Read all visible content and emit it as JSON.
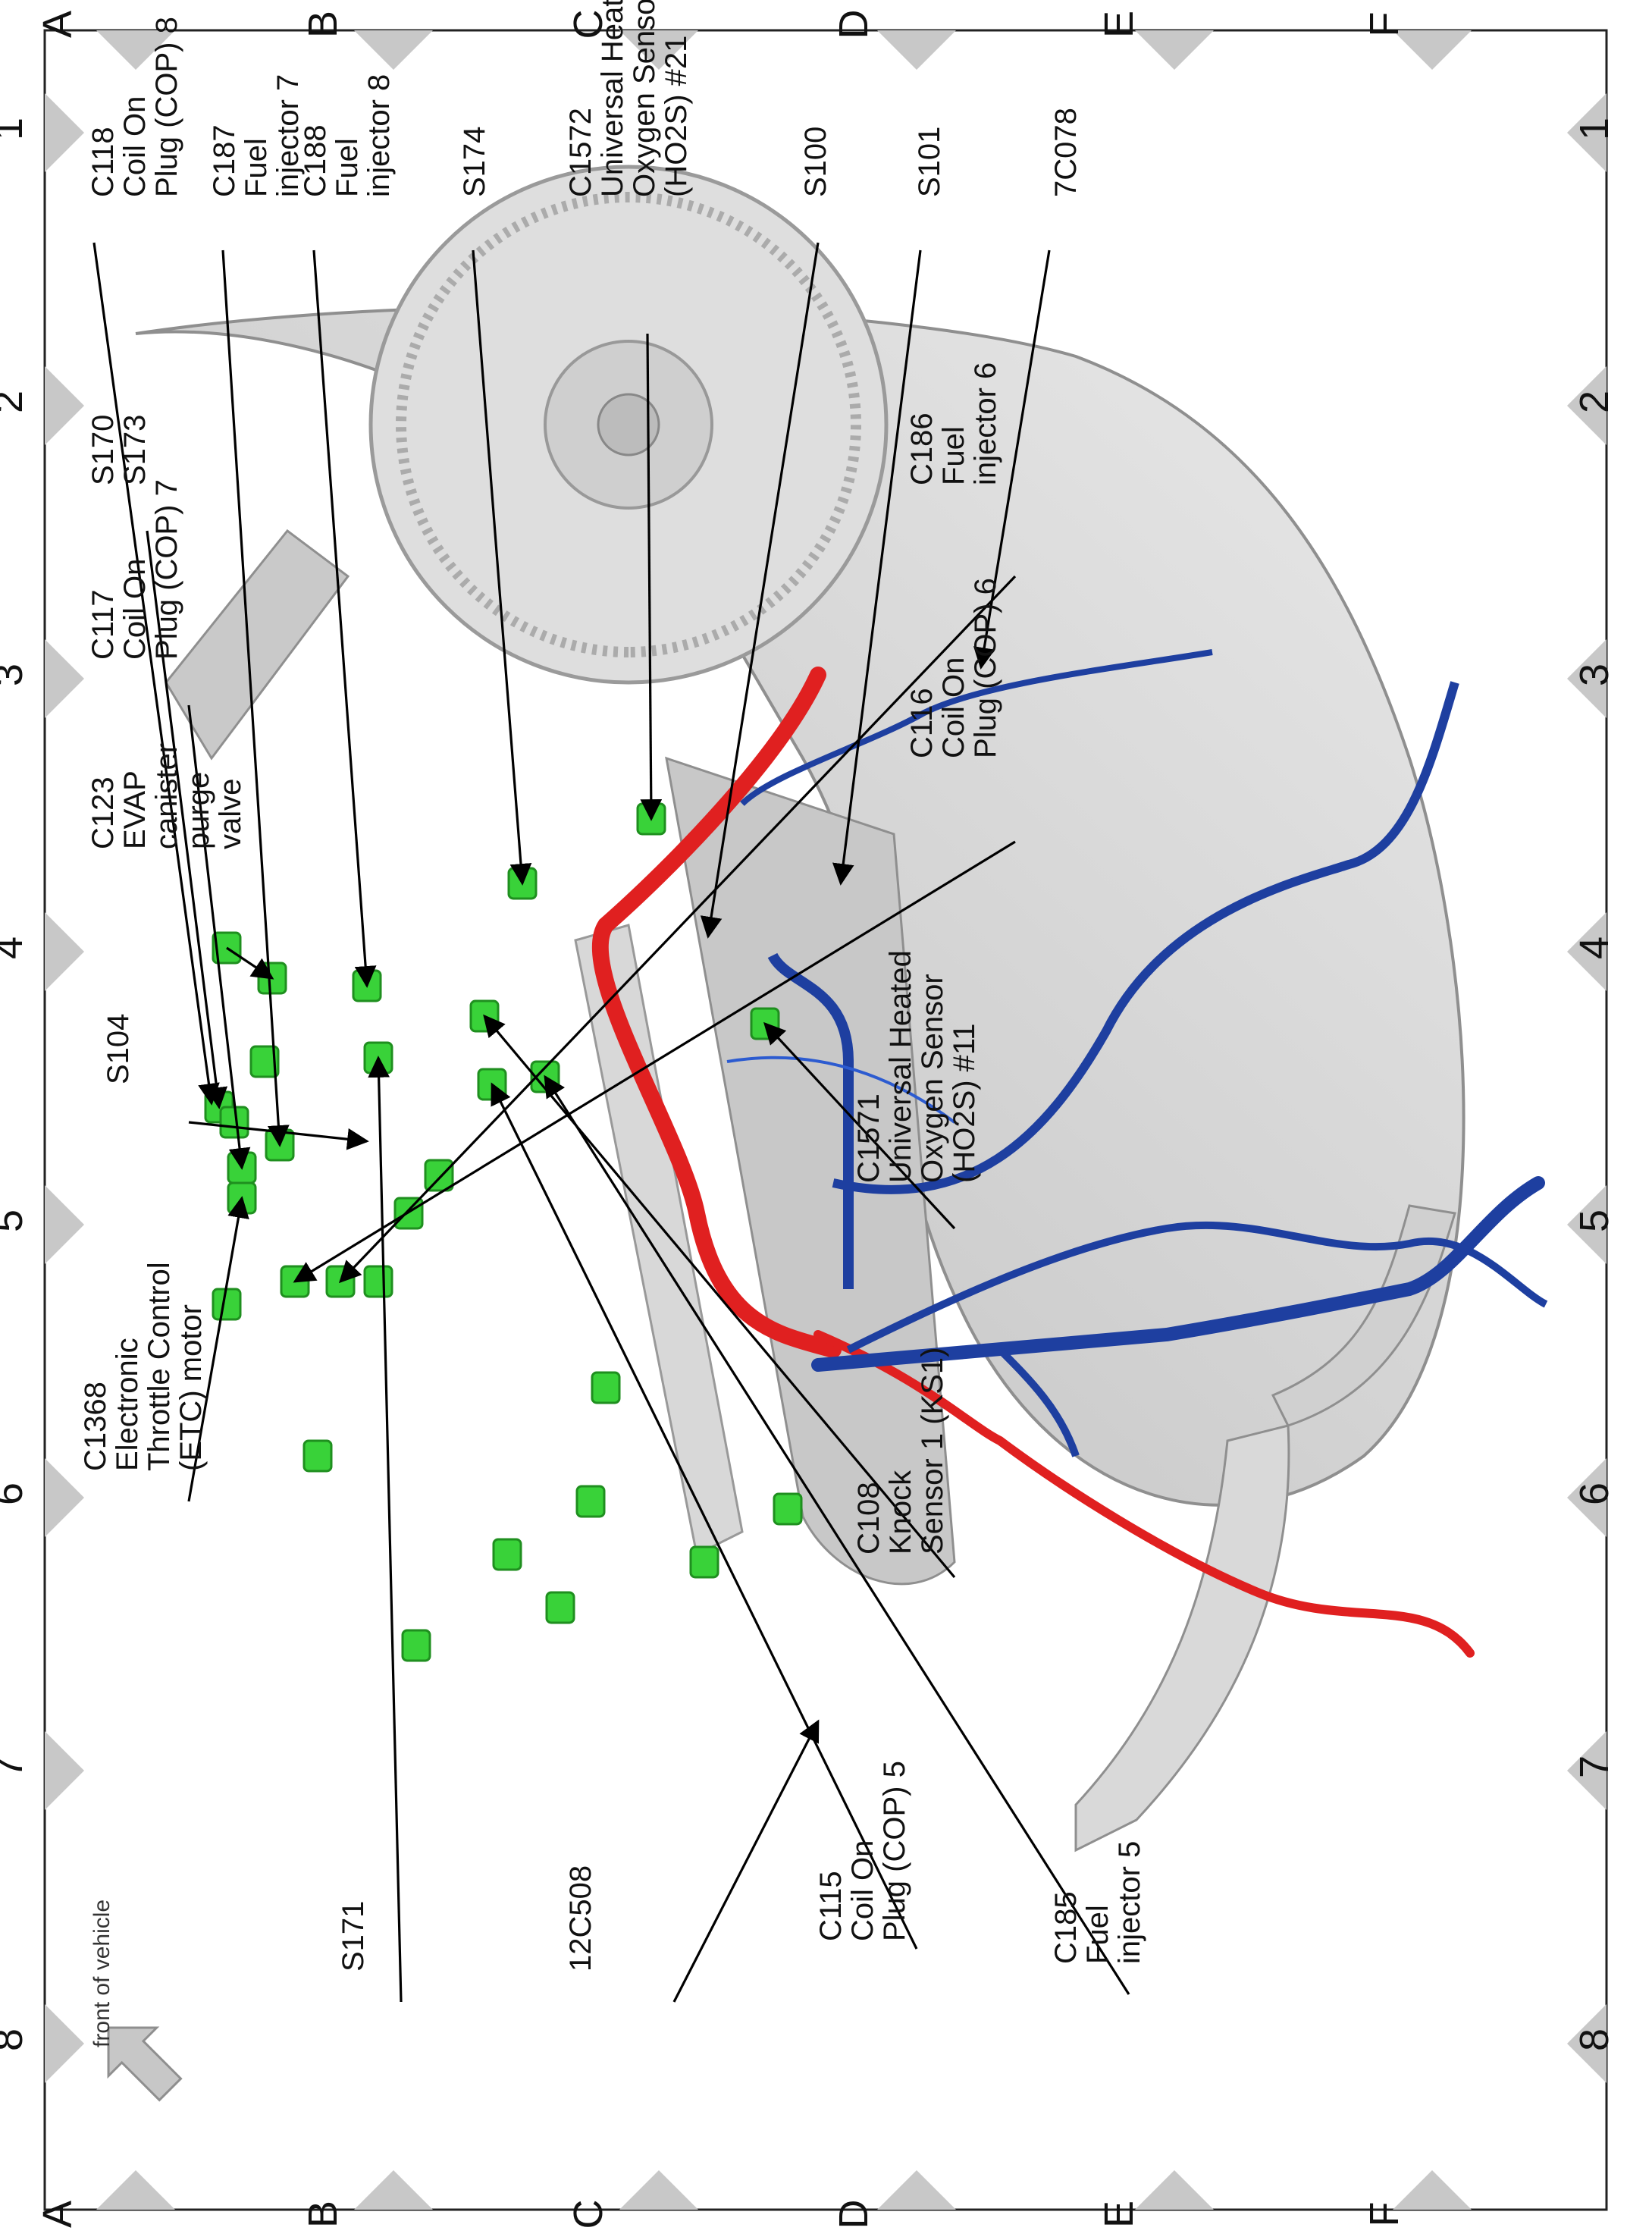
{
  "grid": {
    "columns": [
      "1",
      "2",
      "3",
      "4",
      "5",
      "6",
      "7",
      "8"
    ],
    "rows": [
      "A",
      "B",
      "C",
      "D",
      "E",
      "F"
    ]
  },
  "callouts": {
    "c118": [
      "C118",
      "Coil On",
      "Plug (COP) 8"
    ],
    "c187": [
      "C187",
      "Fuel",
      "injector 7"
    ],
    "c188": [
      "C188",
      "Fuel",
      "injector 8"
    ],
    "s174": [
      "S174"
    ],
    "c1572": [
      "C1572",
      "Universal Heated",
      "Oxygen Sensor",
      "(HO2S) #21"
    ],
    "s100": [
      "S100"
    ],
    "s101": [
      "S101"
    ],
    "7c078": [
      "7C078"
    ],
    "s170_s173": [
      "S170",
      "S173"
    ],
    "c117": [
      "C117",
      "Coil On",
      "Plug (COP) 7"
    ],
    "c186": [
      "C186",
      "Fuel",
      "injector 6"
    ],
    "c116": [
      "C116",
      "Coil On",
      "Plug (COP) 6"
    ],
    "c123": [
      "C123",
      "EVAP",
      "canister",
      "purge",
      "valve"
    ],
    "s104": [
      "S104"
    ],
    "c1571": [
      "C1571",
      "Universal Heated",
      "Oxygen Sensor",
      "(HO2S) #11"
    ],
    "c1368": [
      "C1368",
      "Electronic",
      "Throttle Control",
      "(ETC) motor"
    ],
    "c108": [
      "C108",
      "Knock",
      "Sensor 1 (KS1)"
    ],
    "c115": [
      "C115",
      "Coil On",
      "Plug (COP) 5"
    ],
    "c185": [
      "C185",
      "Fuel",
      "injector 5"
    ],
    "12c508": [
      "12C508"
    ],
    "s171": [
      "S171"
    ]
  },
  "legend": {
    "front_of_vehicle": "front of vehicle",
    "arrow_icon": "front-arrow-icon"
  },
  "colors": {
    "harness_red": "#e02020",
    "harness_blue": "#1e3fa0",
    "connector_green": "#39d239",
    "engine_gray": "#cfcfcf",
    "border_triangle": "#c8c8c8"
  }
}
